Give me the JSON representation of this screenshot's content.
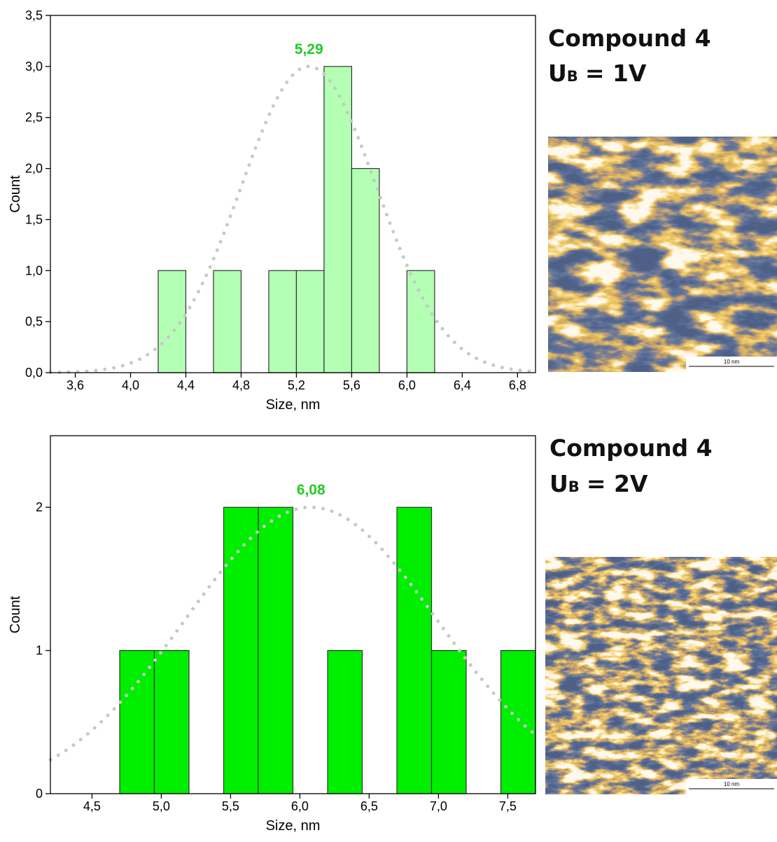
{
  "chart_data": [
    {
      "type": "histogram",
      "x_label": "Size, nm",
      "y_label": "Count",
      "bins": [
        4.2,
        4.4,
        4.6,
        4.8,
        5.0,
        5.2,
        5.4,
        5.6,
        5.8,
        6.0,
        6.2
      ],
      "values": [
        1,
        0,
        1,
        0,
        1,
        1,
        3,
        2,
        0,
        1
      ],
      "color": "#b3ffb3",
      "edge_color": "#333333",
      "xlim": [
        3.42,
        6.93
      ],
      "ylim": [
        0,
        3.5
      ],
      "xticks": [
        {
          "value": 3.6,
          "label": "3,6"
        },
        {
          "value": 4.0,
          "label": "4,0"
        },
        {
          "value": 4.4,
          "label": "4,4"
        },
        {
          "value": 4.8,
          "label": "4,8"
        },
        {
          "value": 5.2,
          "label": "5,2"
        },
        {
          "value": 5.6,
          "label": "5,6"
        },
        {
          "value": 6.0,
          "label": "6,0"
        },
        {
          "value": 6.4,
          "label": "6,4"
        },
        {
          "value": 6.8,
          "label": "6,8"
        }
      ],
      "yticks": [
        {
          "value": 0,
          "label": "0,0"
        },
        {
          "value": 0.5,
          "label": "0,5"
        },
        {
          "value": 1.0,
          "label": "1,0"
        },
        {
          "value": 1.5,
          "label": "1,5"
        },
        {
          "value": 2.0,
          "label": "2,0"
        },
        {
          "value": 2.5,
          "label": "2,5"
        },
        {
          "value": 3.0,
          "label": "3,0"
        },
        {
          "value": 3.5,
          "label": "3,5"
        }
      ],
      "fit": {
        "center": 5.29,
        "center_label": "5,29",
        "amplitude": 3.0,
        "sigma": 0.49,
        "color": "#c8c8c8",
        "label_color": "#22cc22"
      }
    },
    {
      "type": "histogram",
      "x_label": "Size, nm",
      "y_label": "Count",
      "bins": [
        4.7,
        4.95,
        5.2,
        5.45,
        5.7,
        5.95,
        6.2,
        6.45,
        6.7,
        6.95,
        7.2,
        7.45,
        7.7
      ],
      "values": [
        1,
        1,
        0,
        2,
        2,
        0,
        1,
        0,
        2,
        1,
        0,
        1
      ],
      "color": "#00ee00",
      "edge_color": "#333333",
      "xlim": [
        4.2,
        7.7
      ],
      "ylim": [
        0,
        2.5
      ],
      "xticks": [
        {
          "value": 4.5,
          "label": "4,5"
        },
        {
          "value": 5.0,
          "label": "5,0"
        },
        {
          "value": 5.5,
          "label": "5,5"
        },
        {
          "value": 6.0,
          "label": "6,0"
        },
        {
          "value": 6.5,
          "label": "6,5"
        },
        {
          "value": 7.0,
          "label": "7,0"
        },
        {
          "value": 7.5,
          "label": "7,5"
        }
      ],
      "yticks": [
        0,
        1,
        2
      ],
      "fit": {
        "center": 6.08,
        "center_label": "6,08",
        "amplitude": 2.0,
        "sigma": 0.91,
        "color": "#c8c8c8",
        "label_color": "#22cc22"
      }
    }
  ],
  "panels": [
    {
      "title": "Compound 4",
      "bias_symbol": "U",
      "bias_subscript": "B",
      "bias_value": "= 1V",
      "scale_bar": "10 nm"
    },
    {
      "title": "Compound 4",
      "bias_symbol": "U",
      "bias_subscript": "B",
      "bias_value": "= 2V",
      "scale_bar": "10 nm"
    }
  ]
}
